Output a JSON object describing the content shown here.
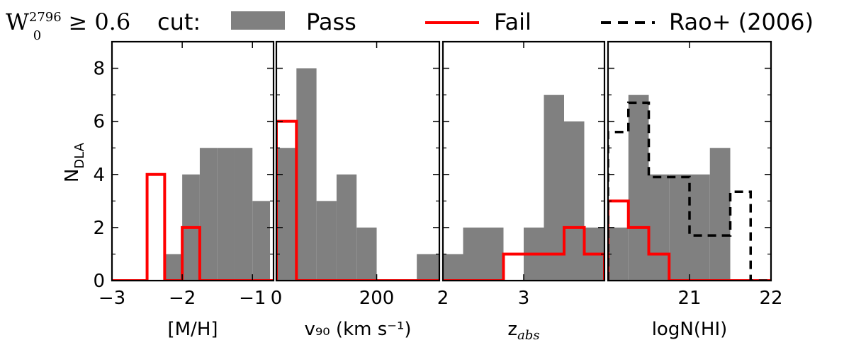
{
  "legend": {
    "cut_label": "cut:",
    "pass_label": "Pass",
    "fail_label": "Fail",
    "rao_label": "Rao+ (2006)",
    "colors": {
      "pass": "#808080",
      "fail": "#ff0000",
      "rao": "#000000"
    }
  },
  "ylabel": "N",
  "ylabel_sub": "DLA",
  "chart_data": [
    {
      "type": "bar",
      "xlabel": "[M/H]",
      "xlim": [
        -3.0,
        -0.7
      ],
      "ylim": [
        0,
        9
      ],
      "xticks": [
        -3,
        -2,
        -1
      ],
      "xticklabels": [
        "−3",
        "−2",
        "−1"
      ],
      "yticks": [
        0,
        2,
        4,
        6,
        8
      ],
      "bin_edges": [
        -2.5,
        -2.25,
        -2.0,
        -1.75,
        -1.5,
        -1.25,
        -1.0,
        -0.75
      ],
      "series": [
        {
          "name": "Pass",
          "style": "filled",
          "values": [
            0,
            1,
            4,
            5,
            5,
            5,
            3
          ]
        },
        {
          "name": "Fail",
          "style": "step",
          "values": [
            4,
            0,
            2,
            0,
            0,
            0,
            0
          ]
        }
      ]
    },
    {
      "type": "bar",
      "xlabel": "v₉₀ (km s⁻¹)",
      "xlim": [
        0,
        325
      ],
      "ylim": [
        0,
        9
      ],
      "xticks": [
        0,
        200
      ],
      "xticklabels": [
        "0",
        "200"
      ],
      "yticks": [
        0,
        2,
        4,
        6,
        8
      ],
      "bin_edges": [
        0,
        40,
        80,
        120,
        160,
        200,
        240,
        280,
        325
      ],
      "series": [
        {
          "name": "Pass",
          "style": "filled",
          "values": [
            5,
            8,
            3,
            4,
            2,
            0,
            0,
            1
          ]
        },
        {
          "name": "Fail",
          "style": "step",
          "values": [
            6,
            0,
            0,
            0,
            0,
            0,
            0,
            0
          ]
        }
      ]
    },
    {
      "type": "bar",
      "xlabel": "z",
      "xlabel_sub": "abs",
      "xlim": [
        2.0,
        4.0
      ],
      "ylim": [
        0,
        9
      ],
      "xticks": [
        2,
        3
      ],
      "xticklabels": [
        "2",
        "3"
      ],
      "yticks": [
        0,
        2,
        4,
        6,
        8
      ],
      "bin_edges": [
        2.0,
        2.25,
        2.5,
        2.75,
        3.0,
        3.25,
        3.5,
        3.75,
        4.0
      ],
      "series": [
        {
          "name": "Pass",
          "style": "filled",
          "values": [
            1,
            2,
            2,
            0,
            2,
            7,
            6,
            2
          ]
        },
        {
          "name": "Fail",
          "style": "step",
          "values": [
            0,
            0,
            0,
            1,
            1,
            1,
            2,
            1
          ]
        }
      ]
    },
    {
      "type": "bar",
      "xlabel": "logN(HI)",
      "xlim": [
        20.0,
        22.0
      ],
      "ylim": [
        0,
        9
      ],
      "xticks": [
        21,
        22
      ],
      "xticklabels": [
        "21",
        "22"
      ],
      "yticks": [
        0,
        2,
        4,
        6,
        8
      ],
      "bin_edges": [
        20.0,
        20.25,
        20.5,
        20.75,
        21.0,
        21.25,
        21.5,
        21.75,
        22.0
      ],
      "series": [
        {
          "name": "Pass",
          "style": "filled",
          "values": [
            2,
            7,
            4,
            4,
            4,
            5,
            0,
            0
          ]
        },
        {
          "name": "Fail",
          "style": "step",
          "values": [
            3,
            2,
            1,
            0,
            0,
            0,
            0,
            0
          ]
        },
        {
          "name": "Rao+ (2006)",
          "style": "dashed-step",
          "values": [
            5.6,
            6.7,
            3.9,
            3.9,
            1.7,
            1.7,
            3.35,
            0
          ]
        }
      ]
    }
  ]
}
